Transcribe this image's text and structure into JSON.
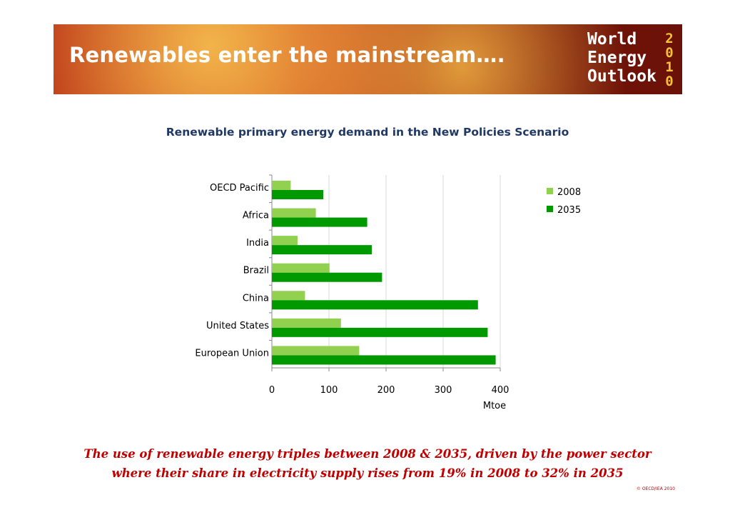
{
  "header": {
    "title": "Renewables enter the mainstream….",
    "logo": {
      "line1": "World",
      "line2": "Energy",
      "line3": "Outlook",
      "year": "2010"
    }
  },
  "chart_data": {
    "type": "bar",
    "orientation": "horizontal",
    "title": "Renewable primary energy demand in the New Policies Scenario",
    "categories": [
      "OECD Pacific",
      "Africa",
      "India",
      "Brazil",
      "China",
      "United States",
      "European Union"
    ],
    "series": [
      {
        "name": "2008",
        "color": "#92d050",
        "values": [
          33,
          77,
          45,
          101,
          58,
          121,
          153
        ]
      },
      {
        "name": "2035",
        "color": "#009900",
        "values": [
          90,
          167,
          175,
          193,
          361,
          378,
          392
        ]
      }
    ],
    "xlabel": "Mtoe",
    "ylabel": "",
    "xlim": [
      0,
      400
    ],
    "xticks": [
      "0",
      "100",
      "200",
      "300",
      "400"
    ],
    "grid": true,
    "legend": "top-right"
  },
  "footer": {
    "caption_line1": "The use of renewable energy triples between 2008 & 2035, driven by the power sector",
    "caption_line2": "where their share in electricity supply rises from 19% in 2008 to 32% in 2035",
    "copyright": "© OECD/IEA 2010"
  }
}
